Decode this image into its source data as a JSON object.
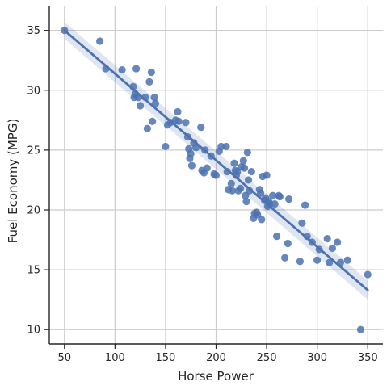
{
  "chart_data": {
    "type": "scatter",
    "title": "",
    "xlabel": "Horse Power",
    "ylabel": "Fuel Economy (MPG)",
    "xlim": [
      35,
      365
    ],
    "ylim": [
      8.8,
      37
    ],
    "xticks": [
      50,
      100,
      150,
      200,
      250,
      300,
      350
    ],
    "yticks": [
      10,
      15,
      20,
      25,
      30,
      35
    ],
    "grid": true,
    "legend": "none",
    "colors": {
      "points": "#4c72b0",
      "line": "#4c72b0",
      "band": "#4c72b0",
      "grid": "#cccccc",
      "axis": "#262626"
    },
    "regression": {
      "x": [
        50,
        350
      ],
      "y": [
        35.0,
        13.3
      ],
      "ci_low": [
        34.3,
        12.5
      ],
      "ci_high": [
        35.7,
        14.1
      ]
    },
    "points": [
      [
        50,
        35.0
      ],
      [
        85,
        34.1
      ],
      [
        91,
        31.8
      ],
      [
        107,
        31.7
      ],
      [
        118,
        30.3
      ],
      [
        121,
        31.8
      ],
      [
        119,
        29.4
      ],
      [
        120,
        29.7
      ],
      [
        123,
        29.4
      ],
      [
        125,
        28.7
      ],
      [
        130,
        29.4
      ],
      [
        132,
        26.8
      ],
      [
        134,
        30.7
      ],
      [
        136,
        31.5
      ],
      [
        137,
        27.4
      ],
      [
        139,
        29.4
      ],
      [
        140,
        28.9
      ],
      [
        150,
        25.3
      ],
      [
        152,
        27.1
      ],
      [
        155,
        27.3
      ],
      [
        160,
        27.5
      ],
      [
        162,
        28.2
      ],
      [
        163,
        27.4
      ],
      [
        170,
        27.3
      ],
      [
        172,
        26.1
      ],
      [
        173,
        25.1
      ],
      [
        174,
        24.3
      ],
      [
        175,
        24.7
      ],
      [
        176,
        23.7
      ],
      [
        178,
        25.6
      ],
      [
        180,
        25.2
      ],
      [
        185,
        26.9
      ],
      [
        186,
        23.3
      ],
      [
        188,
        23.1
      ],
      [
        189,
        25.0
      ],
      [
        191,
        23.5
      ],
      [
        195,
        24.5
      ],
      [
        198,
        23.0
      ],
      [
        200,
        22.9
      ],
      [
        203,
        24.9
      ],
      [
        205,
        25.3
      ],
      [
        210,
        25.3
      ],
      [
        211,
        23.2
      ],
      [
        212,
        21.7
      ],
      [
        215,
        22.2
      ],
      [
        216,
        21.6
      ],
      [
        218,
        23.9
      ],
      [
        219,
        23.3
      ],
      [
        220,
        22.9
      ],
      [
        221,
        23.2
      ],
      [
        222,
        21.6
      ],
      [
        224,
        21.8
      ],
      [
        225,
        23.6
      ],
      [
        227,
        24.1
      ],
      [
        228,
        23.5
      ],
      [
        229,
        21.2
      ],
      [
        230,
        20.7
      ],
      [
        231,
        24.8
      ],
      [
        232,
        22.5
      ],
      [
        233,
        21.6
      ],
      [
        235,
        23.2
      ],
      [
        237,
        19.3
      ],
      [
        238,
        19.7
      ],
      [
        240,
        19.8
      ],
      [
        241,
        19.6
      ],
      [
        243,
        21.7
      ],
      [
        244,
        21.4
      ],
      [
        245,
        19.2
      ],
      [
        246,
        22.8
      ],
      [
        248,
        20.8
      ],
      [
        249,
        21.0
      ],
      [
        250,
        22.9
      ],
      [
        251,
        20.3
      ],
      [
        252,
        20.7
      ],
      [
        253,
        20.5
      ],
      [
        256,
        21.2
      ],
      [
        258,
        20.5
      ],
      [
        260,
        17.8
      ],
      [
        262,
        21.2
      ],
      [
        263,
        21.1
      ],
      [
        268,
        16.0
      ],
      [
        271,
        17.2
      ],
      [
        272,
        20.9
      ],
      [
        283,
        15.7
      ],
      [
        285,
        18.9
      ],
      [
        288,
        20.4
      ],
      [
        290,
        17.8
      ],
      [
        295,
        17.3
      ],
      [
        300,
        15.8
      ],
      [
        302,
        16.7
      ],
      [
        310,
        17.6
      ],
      [
        312,
        15.6
      ],
      [
        315,
        16.8
      ],
      [
        320,
        17.3
      ],
      [
        323,
        15.6
      ],
      [
        330,
        15.8
      ],
      [
        343,
        10.0
      ],
      [
        350,
        14.6
      ]
    ]
  }
}
